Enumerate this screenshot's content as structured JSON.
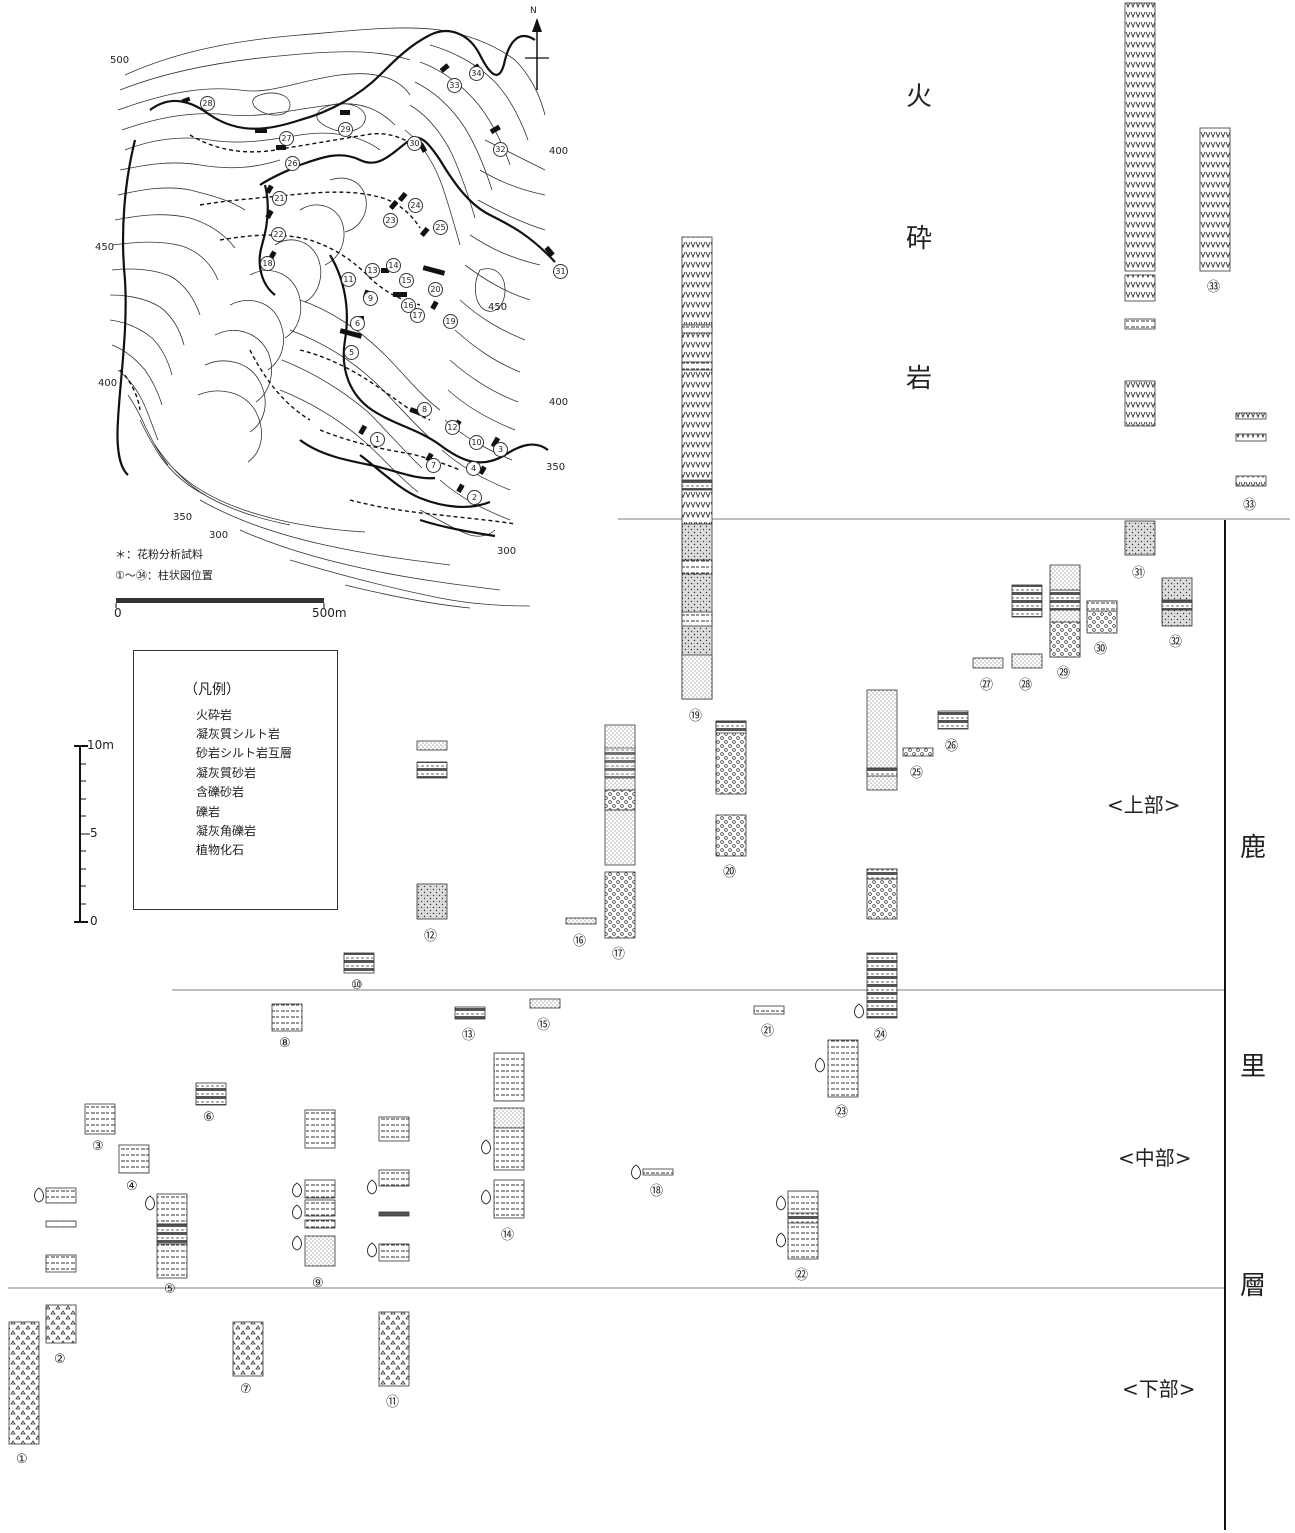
{
  "map": {
    "north_label": "N",
    "contours": [
      "500",
      "450",
      "400",
      "450",
      "400",
      "350",
      "350",
      "300",
      "300",
      "400"
    ],
    "scale_start": "0",
    "scale_end": "500m",
    "note_pollen": "＊：花粉分析試料",
    "note_columns": "①〜㉞：柱状図位置",
    "site_numbers": [
      "1",
      "2",
      "3",
      "4",
      "5",
      "6",
      "7",
      "8",
      "9",
      "10",
      "11",
      "12",
      "13",
      "14",
      "15",
      "16",
      "17",
      "18",
      "19",
      "20",
      "21",
      "22",
      "23",
      "24",
      "25",
      "26",
      "27",
      "28",
      "29",
      "30",
      "31",
      "32",
      "33",
      "34"
    ]
  },
  "legend": {
    "title": "（凡例）",
    "items": [
      {
        "label": "火砕岩",
        "pattern": "volc"
      },
      {
        "label": "凝灰質シルト岩",
        "pattern": "silt"
      },
      {
        "label": "砂岩シルト岩互層",
        "pattern": "alt"
      },
      {
        "label": "凝灰質砂岩",
        "pattern": "sand"
      },
      {
        "label": "含礫砂岩",
        "pattern": "pebsand"
      },
      {
        "label": "礫岩",
        "pattern": "cong"
      },
      {
        "label": "凝灰角礫岩",
        "pattern": "breccia"
      },
      {
        "label": "植物化石",
        "pattern": "fossil"
      }
    ]
  },
  "scale_bar": {
    "top": "10m",
    "mid": "5",
    "bottom": "0"
  },
  "units": {
    "volcanic": [
      "火",
      "砕",
      "岩"
    ],
    "formation": [
      "鹿",
      "里",
      "層"
    ],
    "upper": "<上部>",
    "middle": "<中部>",
    "lower": "<下部>"
  },
  "columns": {
    "c1": "①",
    "c2": "②",
    "c3": "③",
    "c4": "④",
    "c5": "⑤",
    "c6": "⑥",
    "c7": "⑦",
    "c8": "⑧",
    "c9": "⑨",
    "c10": "⑩",
    "c11": "⑪",
    "c12": "⑫",
    "c13": "⑬",
    "c14": "⑭",
    "c15": "⑮",
    "c16": "⑯",
    "c17": "⑰",
    "c18": "⑱",
    "c19": "⑲",
    "c20": "⑳",
    "c21": "㉑",
    "c22": "㉒",
    "c23": "㉓",
    "c24": "㉔",
    "c25": "㉕",
    "c26": "㉖",
    "c27": "㉗",
    "c28": "㉘",
    "c29": "㉙",
    "c30": "㉚",
    "c31": "㉛",
    "c32": "㉜",
    "c33a": "㉝",
    "c33b": "㉝"
  }
}
